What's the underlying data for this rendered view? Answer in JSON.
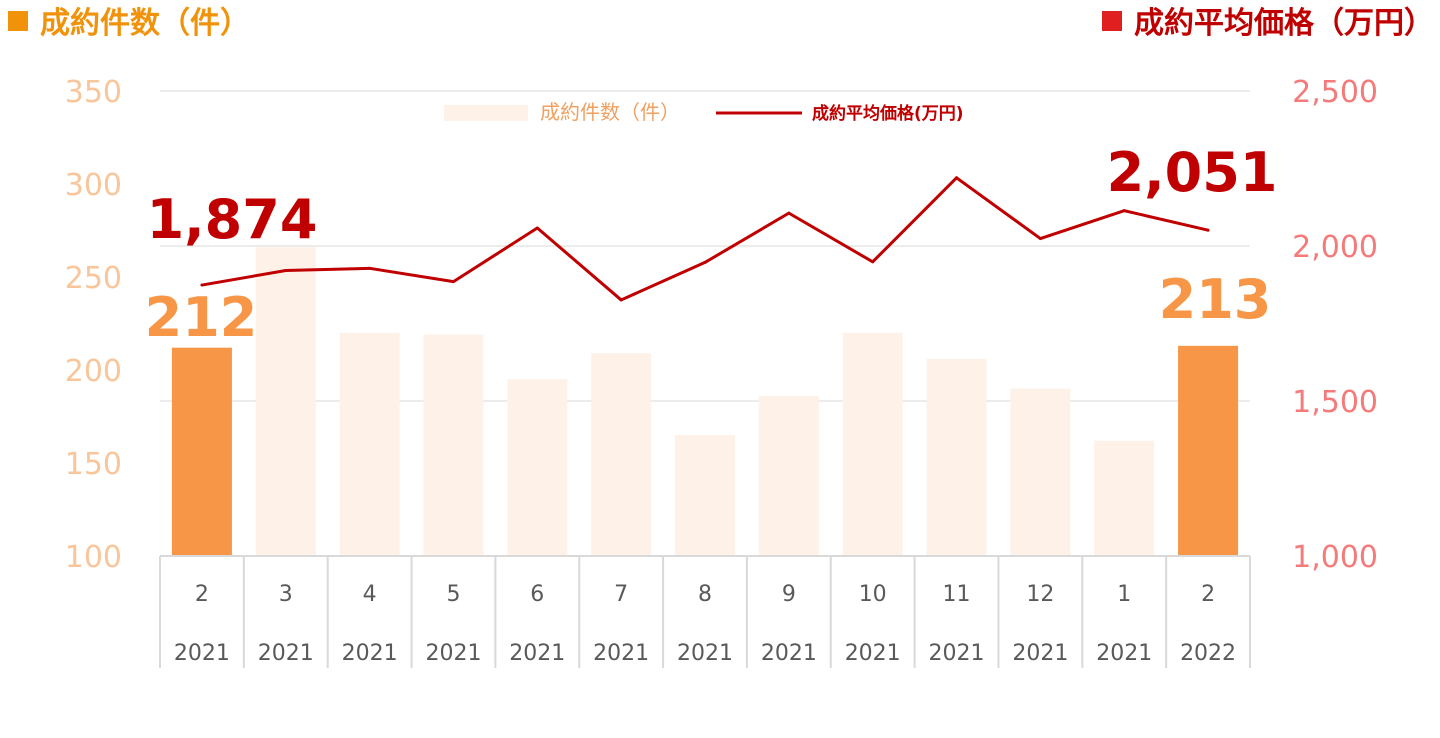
{
  "header": {
    "left_title": "成約件数（件）",
    "right_title": "成約平均価格（万円）"
  },
  "legend": {
    "bars_label": "成約件数（件）",
    "line_label": "成約平均価格(万円)"
  },
  "colors": {
    "bar_light": "#FDF1E8",
    "bar_highlight": "#F79646",
    "line": "#C00000",
    "left_axis": "#F9C69B",
    "right_axis": "#F57A7A",
    "header_left": "#F0930B",
    "header_right": "#C00000"
  },
  "chart_data": {
    "type": "bar+line",
    "categories": [
      {
        "month": "2",
        "year": "2021"
      },
      {
        "month": "3",
        "year": "2021"
      },
      {
        "month": "4",
        "year": "2021"
      },
      {
        "month": "5",
        "year": "2021"
      },
      {
        "month": "6",
        "year": "2021"
      },
      {
        "month": "7",
        "year": "2021"
      },
      {
        "month": "8",
        "year": "2021"
      },
      {
        "month": "9",
        "year": "2021"
      },
      {
        "month": "10",
        "year": "2021"
      },
      {
        "month": "11",
        "year": "2021"
      },
      {
        "month": "12",
        "year": "2021"
      },
      {
        "month": "1",
        "year": "2021"
      },
      {
        "month": "2",
        "year": "2022"
      }
    ],
    "series": [
      {
        "name": "成約件数（件）",
        "type": "bar",
        "axis": "left",
        "values": [
          212,
          266,
          220,
          219,
          195,
          209,
          165,
          186,
          220,
          206,
          190,
          162,
          213
        ],
        "highlight": [
          true,
          false,
          false,
          false,
          false,
          false,
          false,
          false,
          false,
          false,
          false,
          false,
          true
        ]
      },
      {
        "name": "成約平均価格(万円)",
        "type": "line",
        "axis": "right",
        "values": [
          1874,
          1921,
          1928,
          1885,
          2058,
          1826,
          1947,
          2106,
          1949,
          2220,
          2024,
          2114,
          2051
        ]
      }
    ],
    "left_axis": {
      "min": 100,
      "max": 350,
      "ticks": [
        "100",
        "150",
        "200",
        "250",
        "300",
        "350"
      ]
    },
    "right_axis": {
      "min": 1000,
      "max": 2500,
      "ticks": [
        "1,000",
        "1,500",
        "2,000",
        "2,500"
      ]
    },
    "callouts": {
      "line_first": "1,874",
      "line_last": "2,051",
      "bar_first": "212",
      "bar_last": "213"
    },
    "gridlines": true,
    "legend_position": "top-center"
  }
}
